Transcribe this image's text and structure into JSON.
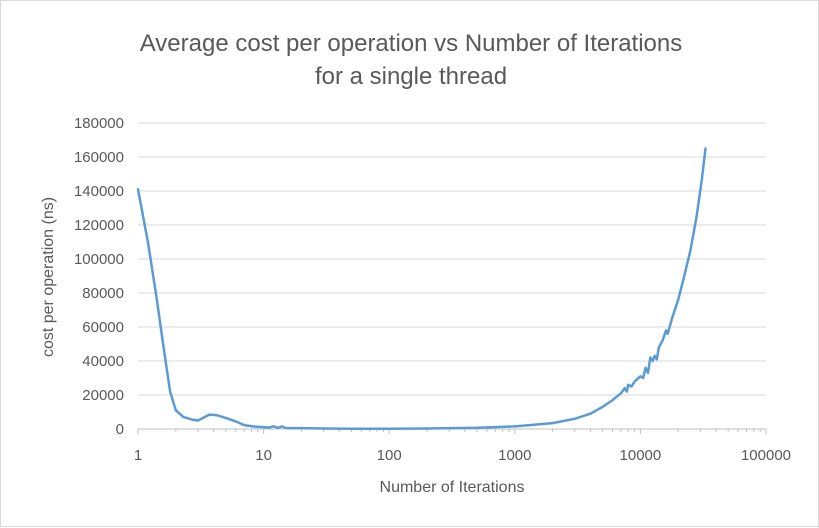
{
  "chart_data": {
    "type": "line",
    "title_line1": "Average cost per operation vs Number of Iterations",
    "title_line2": "for a single thread",
    "xlabel": "Number of Iterations",
    "ylabel": "cost per operation (ns)",
    "x_scale": "log",
    "xlim": [
      1,
      100000
    ],
    "ylim": [
      0,
      180000
    ],
    "x_ticks": [
      {
        "value": 1,
        "label": "1"
      },
      {
        "value": 10,
        "label": "10"
      },
      {
        "value": 100,
        "label": "100"
      },
      {
        "value": 1000,
        "label": "1000"
      },
      {
        "value": 10000,
        "label": "10000"
      },
      {
        "value": 100000,
        "label": "100000"
      }
    ],
    "y_ticks": [
      {
        "value": 0,
        "label": "0"
      },
      {
        "value": 20000,
        "label": "20000"
      },
      {
        "value": 40000,
        "label": "40000"
      },
      {
        "value": 60000,
        "label": "60000"
      },
      {
        "value": 80000,
        "label": "80000"
      },
      {
        "value": 100000,
        "label": "100000"
      },
      {
        "value": 120000,
        "label": "120000"
      },
      {
        "value": 140000,
        "label": "140000"
      },
      {
        "value": 160000,
        "label": "160000"
      },
      {
        "value": 180000,
        "label": "180000"
      }
    ],
    "grid": "horizontal",
    "legend": "none",
    "series": [
      {
        "color": "#5b9bd5",
        "points": [
          [
            1,
            141000
          ],
          [
            1.2,
            110000
          ],
          [
            1.4,
            78000
          ],
          [
            1.6,
            48000
          ],
          [
            1.8,
            22000
          ],
          [
            2.0,
            11000
          ],
          [
            2.3,
            7000
          ],
          [
            2.7,
            5500
          ],
          [
            3.0,
            5000
          ],
          [
            3.3,
            6500
          ],
          [
            3.7,
            8500
          ],
          [
            4.2,
            8200
          ],
          [
            5.0,
            6500
          ],
          [
            6.0,
            4500
          ],
          [
            7.0,
            2300
          ],
          [
            8.5,
            1400
          ],
          [
            10,
            1100
          ],
          [
            11,
            800
          ],
          [
            12,
            1600
          ],
          [
            13,
            700
          ],
          [
            14,
            1500
          ],
          [
            15,
            600
          ],
          [
            17,
            500
          ],
          [
            20,
            500
          ],
          [
            30,
            300
          ],
          [
            50,
            200
          ],
          [
            100,
            200
          ],
          [
            200,
            300
          ],
          [
            500,
            700
          ],
          [
            1000,
            1500
          ],
          [
            2000,
            3500
          ],
          [
            3000,
            6000
          ],
          [
            4000,
            9000
          ],
          [
            5000,
            13000
          ],
          [
            6000,
            17000
          ],
          [
            7000,
            21000
          ],
          [
            7500,
            24000
          ],
          [
            7800,
            22000
          ],
          [
            8000,
            26000
          ],
          [
            8500,
            25000
          ],
          [
            9000,
            28000
          ],
          [
            10000,
            31000
          ],
          [
            10500,
            30000
          ],
          [
            11000,
            36000
          ],
          [
            11500,
            33000
          ],
          [
            12000,
            42000
          ],
          [
            12500,
            40000
          ],
          [
            13000,
            43000
          ],
          [
            13500,
            41000
          ],
          [
            14000,
            48000
          ],
          [
            15000,
            52000
          ],
          [
            16000,
            58000
          ],
          [
            16500,
            56000
          ],
          [
            18000,
            66000
          ],
          [
            20000,
            76000
          ],
          [
            22000,
            88000
          ],
          [
            25000,
            105000
          ],
          [
            28000,
            125000
          ],
          [
            31000,
            148000
          ],
          [
            33000,
            165000
          ]
        ]
      }
    ]
  }
}
